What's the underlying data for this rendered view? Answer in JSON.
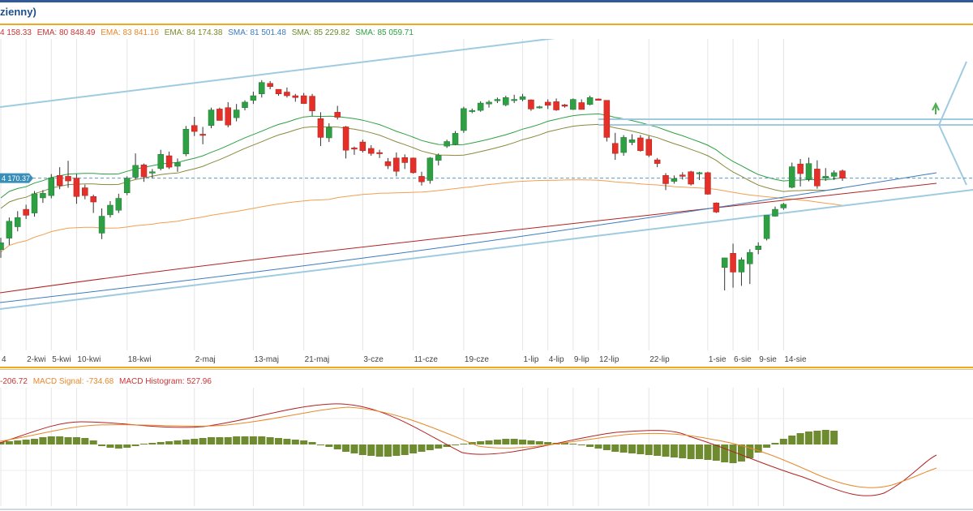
{
  "title": "zienny)",
  "legend": [
    {
      "text": "4 158.33",
      "color": "#cc3333"
    },
    {
      "text": "EMA: 80 848.49",
      "color": "#cc3333"
    },
    {
      "text": "EMA: 83 841.16",
      "color": "#e8882a"
    },
    {
      "text": "EMA: 84 174.38",
      "color": "#7a8a2a"
    },
    {
      "text": "SMA: 81 501.48",
      "color": "#3b7bbf"
    },
    {
      "text": "SMA: 85 229.82",
      "color": "#6a8a2a"
    },
    {
      "text": "SMA: 85 059.71",
      "color": "#2ea043"
    }
  ],
  "macd_legend": [
    {
      "text": "-206.72",
      "color": "#cc3333"
    },
    {
      "text": "MACD Signal: -734.68",
      "color": "#e8882a"
    },
    {
      "text": "MACD Histogram: 527.96",
      "color": "#cc3333"
    }
  ],
  "price_marker": "4 170.37",
  "colors": {
    "up": "#2ea043",
    "down": "#e5302a",
    "wick": "#333333",
    "channel": "#9fcbe0",
    "histogram": "#6e8b2f"
  },
  "chart_data": [
    {
      "type": "candlestick",
      "xlabels": [
        {
          "index": 0,
          "label": "4"
        },
        {
          "index": 3,
          "label": "2-kwi"
        },
        {
          "index": 6,
          "label": "5-kwi"
        },
        {
          "index": 9,
          "label": "10-kwi"
        },
        {
          "index": 15,
          "label": "18-kwi"
        },
        {
          "index": 23,
          "label": "2-maj"
        },
        {
          "index": 30,
          "label": "13-maj"
        },
        {
          "index": 36,
          "label": "21-maj"
        },
        {
          "index": 43,
          "label": "3-cze"
        },
        {
          "index": 49,
          "label": "11-cze"
        },
        {
          "index": 55,
          "label": "19-cze"
        },
        {
          "index": 62,
          "label": "1-lip"
        },
        {
          "index": 65,
          "label": "4-lip"
        },
        {
          "index": 68,
          "label": "9-lip"
        },
        {
          "index": 71,
          "label": "12-lip"
        },
        {
          "index": 77,
          "label": "22-lip"
        },
        {
          "index": 84,
          "label": "1-sie"
        },
        {
          "index": 87,
          "label": "6-sie"
        },
        {
          "index": 90,
          "label": "9-sie"
        },
        {
          "index": 93,
          "label": "14-sie"
        }
      ],
      "ohlc": [
        [
          81200,
          81460,
          81020,
          81350
        ],
        [
          81450,
          81900,
          81300,
          81820
        ],
        [
          81700,
          82040,
          81600,
          81900
        ],
        [
          82080,
          82180,
          81870,
          81950
        ],
        [
          82000,
          82480,
          81920,
          82420
        ],
        [
          82330,
          82500,
          82220,
          82430
        ],
        [
          82380,
          82850,
          82320,
          82770
        ],
        [
          82820,
          83000,
          82520,
          82600
        ],
        [
          82800,
          83140,
          82550,
          82700
        ],
        [
          82760,
          82850,
          82200,
          82360
        ],
        [
          82550,
          82620,
          82300,
          82380
        ],
        [
          82360,
          82400,
          82000,
          82240
        ],
        [
          81560,
          82100,
          81430,
          81930
        ],
        [
          81960,
          82260,
          81900,
          82170
        ],
        [
          82060,
          82420,
          82000,
          82320
        ],
        [
          82440,
          82800,
          82390,
          82760
        ],
        [
          82780,
          83300,
          82740,
          83040
        ],
        [
          83050,
          83080,
          82680,
          82790
        ],
        [
          82870,
          82960,
          82760,
          82900
        ],
        [
          82970,
          83380,
          82930,
          83280
        ],
        [
          83250,
          83340,
          82960,
          83000
        ],
        [
          83020,
          83190,
          82900,
          83100
        ],
        [
          83290,
          83900,
          83240,
          83830
        ],
        [
          83910,
          84100,
          83680,
          83780
        ],
        [
          83720,
          83880,
          83500,
          83700
        ],
        [
          83910,
          84300,
          83850,
          84250
        ],
        [
          84270,
          84300,
          84020,
          84020
        ],
        [
          84300,
          84420,
          83870,
          83920
        ],
        [
          84080,
          84380,
          84000,
          84250
        ],
        [
          84300,
          84460,
          84240,
          84420
        ],
        [
          84460,
          84650,
          84380,
          84560
        ],
        [
          84600,
          84900,
          84520,
          84850
        ],
        [
          84830,
          84880,
          84700,
          84760
        ],
        [
          84700,
          84700,
          84560,
          84600
        ],
        [
          84640,
          84740,
          84520,
          84560
        ],
        [
          84560,
          84600,
          84430,
          84520
        ],
        [
          84560,
          84620,
          84380,
          84390
        ],
        [
          84550,
          84600,
          84120,
          84230
        ],
        [
          84060,
          84200,
          83460,
          83650
        ],
        [
          83640,
          83960,
          83550,
          83870
        ],
        [
          84200,
          84340,
          84040,
          84090
        ],
        [
          83880,
          83900,
          83190,
          83370
        ],
        [
          83420,
          83450,
          83270,
          83400
        ],
        [
          83550,
          83600,
          83320,
          83360
        ],
        [
          83410,
          83480,
          83250,
          83300
        ],
        [
          83320,
          83380,
          83200,
          83300
        ],
        [
          83120,
          83200,
          82960,
          83030
        ],
        [
          83200,
          83320,
          82800,
          82910
        ],
        [
          83210,
          83280,
          82960,
          83100
        ],
        [
          83200,
          83210,
          82860,
          82880
        ],
        [
          82800,
          82900,
          82600,
          82680
        ],
        [
          82710,
          83220,
          82640,
          83200
        ],
        [
          83150,
          83300,
          83040,
          83260
        ],
        [
          83460,
          83600,
          83420,
          83560
        ],
        [
          83500,
          83790,
          83480,
          83740
        ],
        [
          83800,
          84320,
          83750,
          84280
        ],
        [
          84220,
          84280,
          84180,
          84240
        ],
        [
          84240,
          84440,
          84210,
          84400
        ],
        [
          84380,
          84460,
          84300,
          84420
        ],
        [
          84450,
          84520,
          84400,
          84480
        ],
        [
          84360,
          84560,
          84330,
          84520
        ],
        [
          84460,
          84580,
          84400,
          84480
        ],
        [
          84480,
          84600,
          84440,
          84540
        ],
        [
          84470,
          84480,
          84230,
          84270
        ],
        [
          84300,
          84340,
          84280,
          84320
        ],
        [
          84420,
          84480,
          84270,
          84350
        ],
        [
          84430,
          84500,
          84230,
          84250
        ],
        [
          84360,
          84380,
          84300,
          84330
        ],
        [
          84260,
          84500,
          84250,
          84480
        ],
        [
          84410,
          84480,
          84260,
          84260
        ],
        [
          84370,
          84560,
          84350,
          84520
        ],
        [
          84490,
          84500,
          84460,
          84460
        ],
        [
          84460,
          84460,
          83560,
          83650
        ],
        [
          83520,
          83750,
          83160,
          83300
        ],
        [
          83320,
          83700,
          83250,
          83650
        ],
        [
          83540,
          83720,
          83480,
          83600
        ],
        [
          83640,
          83700,
          83340,
          83360
        ],
        [
          83610,
          83680,
          83220,
          83260
        ],
        [
          83160,
          83200,
          83000,
          83080
        ],
        [
          82820,
          82870,
          82500,
          82640
        ],
        [
          82690,
          82820,
          82640,
          82750
        ],
        [
          82830,
          82890,
          82730,
          82800
        ],
        [
          82900,
          82920,
          82600,
          82630
        ],
        [
          82880,
          82900,
          82720,
          82880
        ],
        [
          82880,
          82900,
          82400,
          82410
        ],
        [
          82220,
          82230,
          82000,
          82020
        ],
        [
          80810,
          81020,
          80310,
          81020
        ],
        [
          81120,
          81330,
          80370,
          80710
        ],
        [
          80710,
          81030,
          80410,
          80980
        ],
        [
          80890,
          81210,
          80450,
          81140
        ],
        [
          81200,
          81360,
          81100,
          81280
        ],
        [
          81440,
          81950,
          81400,
          81950
        ],
        [
          81930,
          82140,
          81920,
          82080
        ],
        [
          82110,
          82220,
          82070,
          82190
        ],
        [
          82560,
          83100,
          82540,
          83010
        ],
        [
          83070,
          83180,
          82580,
          82860
        ],
        [
          82740,
          83210,
          82690,
          83080
        ],
        [
          82960,
          83150,
          82530,
          82590
        ],
        [
          82760,
          82980,
          82700,
          82800
        ],
        [
          82800,
          82930,
          82720,
          82880
        ],
        [
          82920,
          82950,
          82700,
          82760
        ]
      ],
      "axis_range": [
        79000,
        85800
      ]
    },
    {
      "type": "macd_histogram",
      "histogram": [
        3,
        4,
        5,
        6,
        7,
        9,
        10,
        10,
        9,
        9,
        8,
        5,
        -2,
        -4,
        -5,
        -4,
        -2,
        1,
        2,
        3,
        4,
        5,
        6,
        7,
        8,
        9,
        9,
        9,
        10,
        10,
        10,
        10,
        9,
        8,
        7,
        6,
        5,
        3,
        0,
        -3,
        -6,
        -9,
        -11,
        -13,
        -14,
        -15,
        -15,
        -14,
        -13,
        -11,
        -9,
        -7,
        -5,
        -3,
        -1,
        1,
        3,
        4,
        5,
        6,
        7,
        7,
        6,
        5,
        4,
        3,
        2,
        2,
        1,
        -1,
        -3,
        -5,
        -7,
        -9,
        -10,
        -11,
        -12,
        -13,
        -14,
        -15,
        -16,
        -17,
        -18,
        -18,
        -19,
        -20,
        -22,
        -23,
        -21,
        -17,
        -10,
        -4,
        2,
        7,
        11,
        14,
        16,
        17,
        18,
        17
      ]
    }
  ]
}
